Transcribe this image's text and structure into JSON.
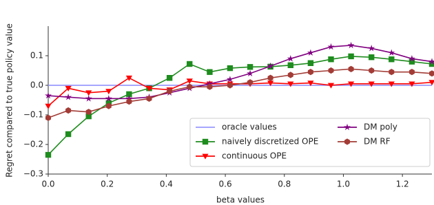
{
  "chart_data": {
    "type": "line",
    "x_label": "beta values",
    "y_label": "Regret compared to true policy value",
    "x": [
      0,
      0.068,
      0.137,
      0.205,
      0.274,
      0.342,
      0.411,
      0.479,
      0.547,
      0.616,
      0.684,
      0.753,
      0.821,
      0.889,
      0.958,
      1.026,
      1.095,
      1.163,
      1.232,
      1.3
    ],
    "series": [
      {
        "name": "oracle values",
        "color": "#9999ff",
        "marker": "none",
        "values": [
          0,
          0,
          0,
          0,
          0,
          0,
          0,
          0,
          0,
          0,
          0,
          0,
          0,
          0,
          0,
          0,
          0,
          0,
          0,
          0
        ]
      },
      {
        "name": "naively discretized OPE",
        "color": "#1e8c1e",
        "marker": "square",
        "values": [
          -0.235,
          -0.165,
          -0.105,
          -0.06,
          -0.03,
          -0.01,
          0.025,
          0.072,
          0.045,
          0.058,
          0.062,
          0.063,
          0.068,
          0.075,
          0.088,
          0.098,
          0.095,
          0.088,
          0.08,
          0.072
        ]
      },
      {
        "name": "continuous OPE",
        "color": "#ff0000",
        "marker": "triangle-down",
        "values": [
          -0.07,
          -0.01,
          -0.025,
          -0.02,
          0.025,
          -0.01,
          -0.015,
          0.015,
          0.005,
          0.005,
          0.005,
          0.008,
          0.005,
          0.008,
          0.0,
          0.005,
          0.005,
          0.005,
          0.005,
          0.01
        ]
      },
      {
        "name": "DM poly",
        "color": "#800080",
        "marker": "star",
        "values": [
          -0.035,
          -0.04,
          -0.045,
          -0.045,
          -0.045,
          -0.04,
          -0.025,
          -0.01,
          0.005,
          0.02,
          0.04,
          0.065,
          0.09,
          0.11,
          0.13,
          0.135,
          0.125,
          0.11,
          0.09,
          0.08
        ]
      },
      {
        "name": "DM RF",
        "color": "#a33c36",
        "marker": "hexagon",
        "values": [
          -0.11,
          -0.085,
          -0.09,
          -0.07,
          -0.055,
          -0.045,
          -0.02,
          -0.005,
          -0.005,
          0.0,
          0.01,
          0.025,
          0.035,
          0.045,
          0.05,
          0.055,
          0.05,
          0.045,
          0.045,
          0.04
        ]
      }
    ],
    "xlim": [
      0,
      1.3
    ],
    "ylim": [
      -0.3,
      0.2
    ],
    "xticks": [
      {
        "value": 0,
        "label": "0.0"
      },
      0.2,
      0.4,
      0.6,
      0.8,
      {
        "value": 1,
        "label": "1.0"
      },
      1.2
    ],
    "yticks": [
      {
        "value": -0.3,
        "label": "−0.3"
      },
      {
        "value": -0.2,
        "label": "−0.2"
      },
      {
        "value": -0.1,
        "label": "−0.1"
      },
      {
        "value": 0,
        "label": "0.0"
      },
      0.1
    ],
    "grid": false,
    "legend": "lower right"
  }
}
